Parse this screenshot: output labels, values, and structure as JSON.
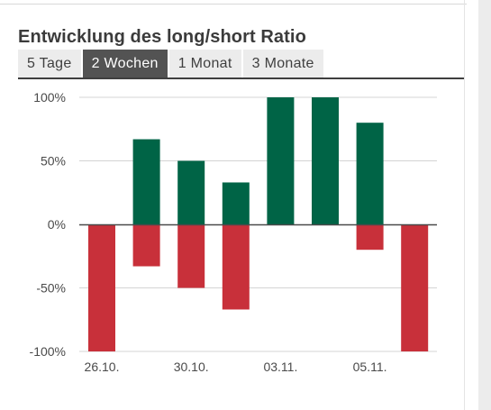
{
  "title": "Entwicklung des long/short Ratio",
  "tabs": [
    {
      "label": "5 Tage",
      "active": false
    },
    {
      "label": "2 Wochen",
      "active": true
    },
    {
      "label": "1 Monat",
      "active": false
    },
    {
      "label": "3 Monate",
      "active": false
    }
  ],
  "colors": {
    "long": "#006446",
    "short": "#c8303a",
    "active_tab": "#535353",
    "tab": "#ececec"
  },
  "chart_data": {
    "type": "bar",
    "ylim": [
      -100,
      100
    ],
    "yticks": [
      "100%",
      "50%",
      "0%",
      "-50%",
      "-100%"
    ],
    "ytick_values": [
      100,
      50,
      0,
      -50,
      -100
    ],
    "xtick_labels": [
      "26.10.",
      "30.10.",
      "03.11.",
      "05.11."
    ],
    "xtick_bar_index": [
      0,
      2,
      4,
      6
    ],
    "series": [
      {
        "values": [
          0,
          67,
          50,
          33,
          100,
          100,
          80,
          0
        ]
      },
      {
        "values": [
          -100,
          -33,
          -50,
          -67,
          0,
          0,
          -20,
          -100
        ]
      }
    ]
  }
}
